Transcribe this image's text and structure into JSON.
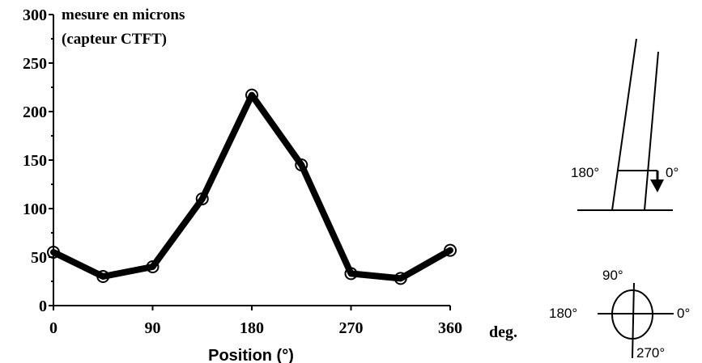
{
  "chart_data": {
    "type": "line",
    "title": "mesure en microns",
    "subtitle": "(capteur CTFT)",
    "xlabel": "Position (°)",
    "x_unit": "deg.",
    "xlim": [
      0,
      360
    ],
    "ylim": [
      0,
      300
    ],
    "x_ticks": [
      0,
      90,
      180,
      270,
      360
    ],
    "y_ticks": [
      0,
      50,
      100,
      150,
      200,
      250,
      300
    ],
    "x": [
      0,
      45,
      90,
      135,
      180,
      225,
      270,
      315,
      360
    ],
    "values": [
      55,
      30,
      40,
      110,
      217,
      145,
      33,
      28,
      57
    ],
    "grid": false,
    "legend": "none"
  },
  "diagram_top": {
    "left_label": "180°",
    "right_label": "0°"
  },
  "diagram_bottom": {
    "top_label": "90°",
    "left_label": "180°",
    "right_label": "0°",
    "bottom_label": "270°"
  }
}
